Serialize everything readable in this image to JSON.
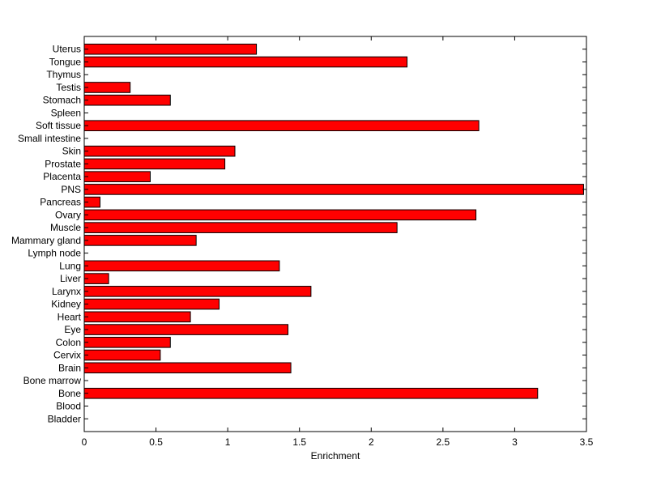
{
  "chart_data": {
    "type": "bar",
    "orientation": "horizontal",
    "title": "",
    "xlabel": "Enrichment",
    "ylabel": "",
    "xlim": [
      0,
      3.5
    ],
    "xticks": [
      0,
      0.5,
      1,
      1.5,
      2,
      2.5,
      3,
      3.5
    ],
    "xtick_labels": [
      "0",
      "0.5",
      "1",
      "1.5",
      "2",
      "2.5",
      "3",
      "3.5"
    ],
    "grid": false,
    "bar_color": "#ff0000",
    "bar_edge_color": "#000000",
    "categories": [
      "Bladder",
      "Blood",
      "Bone",
      "Bone marrow",
      "Brain",
      "Cervix",
      "Colon",
      "Eye",
      "Heart",
      "Kidney",
      "Larynx",
      "Liver",
      "Lung",
      "Lymph node",
      "Mammary gland",
      "Muscle",
      "Ovary",
      "Pancreas",
      "PNS",
      "Placenta",
      "Prostate",
      "Skin",
      "Small intestine",
      "Soft tissue",
      "Spleen",
      "Stomach",
      "Testis",
      "Thymus",
      "Tongue",
      "Uterus"
    ],
    "values": [
      0,
      0,
      3.16,
      0,
      1.44,
      0.53,
      0.6,
      1.42,
      0.74,
      0.94,
      1.58,
      0.17,
      1.36,
      0,
      0.78,
      2.18,
      2.73,
      0.11,
      3.48,
      0.46,
      0.98,
      1.05,
      0,
      2.75,
      0,
      0.6,
      0.32,
      0,
      2.25,
      1.2
    ]
  }
}
